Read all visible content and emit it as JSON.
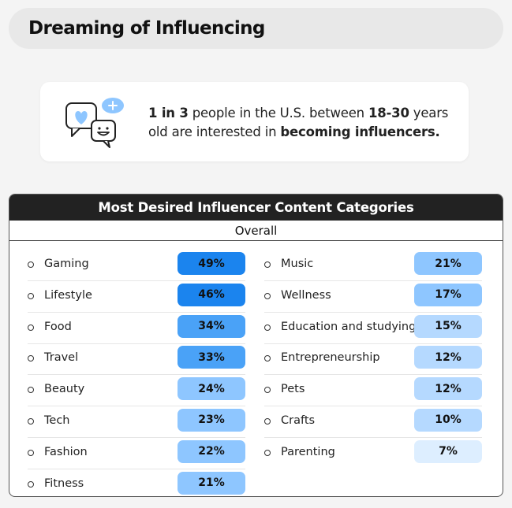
{
  "title": "Dreaming of Influencing",
  "stat": {
    "p1": "1 in 3",
    "p2": " people in the U.S. between ",
    "p3": "18-30",
    "p4": " years old are interested in ",
    "p5": "becoming influencers."
  },
  "table": {
    "heading": "Most Desired Influencer Content Categories",
    "subheading": "Overall",
    "left": [
      {
        "label": "Gaming",
        "value": "49%",
        "pct": 49
      },
      {
        "label": "Lifestyle",
        "value": "46%",
        "pct": 46
      },
      {
        "label": "Food",
        "value": "34%",
        "pct": 34
      },
      {
        "label": "Travel",
        "value": "33%",
        "pct": 33
      },
      {
        "label": "Beauty",
        "value": "24%",
        "pct": 24
      },
      {
        "label": "Tech",
        "value": "23%",
        "pct": 23
      },
      {
        "label": "Fashion",
        "value": "22%",
        "pct": 22
      },
      {
        "label": "Fitness",
        "value": "21%",
        "pct": 21
      }
    ],
    "right": [
      {
        "label": "Music",
        "value": "21%",
        "pct": 21
      },
      {
        "label": "Wellness",
        "value": "17%",
        "pct": 17
      },
      {
        "label": "Education and studying",
        "value": "15%",
        "pct": 15
      },
      {
        "label": "Entrepreneurship",
        "value": "12%",
        "pct": 12
      },
      {
        "label": "Pets",
        "value": "12%",
        "pct": 12
      },
      {
        "label": "Crafts",
        "value": "10%",
        "pct": 10
      },
      {
        "label": "Parenting",
        "value": "7%",
        "pct": 7
      }
    ]
  },
  "colors": {
    "scale": [
      "#ddeeff",
      "#b5d9ff",
      "#8ec6ff",
      "#4aa2f7",
      "#1b84ee"
    ],
    "icon": "#8ec6ff"
  }
}
